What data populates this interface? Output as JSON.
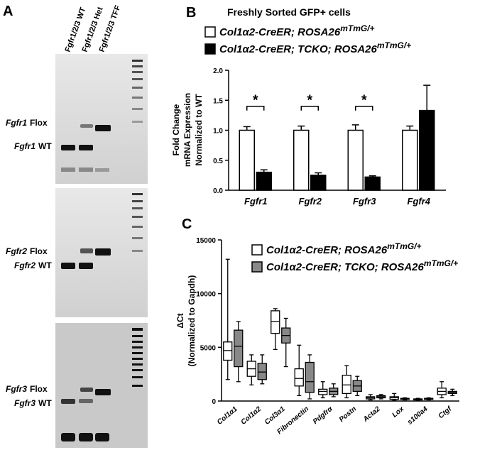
{
  "gel": {
    "panel_label": "A",
    "lanes": [
      "Fgfr1/2/3 WT",
      "Fgfr1/2/3 Het",
      "Fgfr1/2/3 TFF"
    ],
    "blots": [
      {
        "gene": "Fgfr1",
        "bands": [
          "Flox",
          "WT"
        ]
      },
      {
        "gene": "Fgfr2",
        "bands": [
          "Flox",
          "WT"
        ]
      },
      {
        "gene": "Fgfr3",
        "bands": [
          "Flox",
          "WT"
        ]
      }
    ]
  },
  "chart_data": [
    {
      "type": "bar",
      "panel_label": "B",
      "title": "Freshly Sorted GFP+ cells",
      "ylabel": [
        "Fold Change",
        "mRNA Expression",
        "Normalized to WT"
      ],
      "categories": [
        "Fgfr1",
        "Fgfr2",
        "Fgfr3",
        "Fgfr4"
      ],
      "series": [
        {
          "name": "Col1α2-CreER; ROSA26",
          "name_superscript": "mTmG/+",
          "color": "#ffffff",
          "values": [
            1.0,
            1.0,
            1.0,
            1.0
          ],
          "errors": [
            0.06,
            0.07,
            0.09,
            0.07
          ]
        },
        {
          "name": "Col1α2-CreER; TCKO; ROSA26",
          "name_superscript": "mTmG/+",
          "color": "#000000",
          "values": [
            0.3,
            0.25,
            0.22,
            1.33
          ],
          "errors": [
            0.04,
            0.04,
            0.02,
            0.42
          ]
        }
      ],
      "significance": [
        "*",
        "*",
        "*",
        null
      ],
      "ylim": [
        0,
        2
      ],
      "yticks": [
        {
          "value": 0,
          "label": "0.0"
        },
        {
          "value": 0.5,
          "label": "0.5"
        },
        {
          "value": 1,
          "label": "1.0"
        },
        {
          "value": 1.5,
          "label": "1.5"
        },
        {
          "value": 2,
          "label": "2.0"
        }
      ]
    },
    {
      "type": "box",
      "panel_label": "C",
      "ylabel": [
        "ΔCt",
        "(Normalized to Gapdh)"
      ],
      "categories": [
        "Col1α1",
        "Col1α2",
        "Col3α1",
        "Fibronectin",
        "Pdgfrα",
        "Postn",
        "Acta2",
        "Lox",
        "s100a4",
        "Ctgf"
      ],
      "series": [
        {
          "name": "Col1α2-CreER; ROSA26",
          "name_superscript": "mTmG/+",
          "color": "#ffffff",
          "values": [
            [
              2000,
              3800,
              4700,
              5500,
              13200
            ],
            [
              1500,
              2300,
              3000,
              3700,
              4300
            ],
            [
              4800,
              6300,
              7400,
              8400,
              8600
            ],
            [
              500,
              1400,
              2100,
              3000,
              5200
            ],
            [
              300,
              600,
              900,
              1100,
              1800
            ],
            [
              300,
              700,
              1500,
              2400,
              3300
            ],
            [
              100,
              200,
              300,
              400,
              600
            ],
            [
              50,
              150,
              300,
              400,
              700
            ],
            [
              50,
              100,
              150,
              200,
              250
            ],
            [
              300,
              600,
              900,
              1200,
              1800
            ]
          ]
        },
        {
          "name": "Col1α2-CreER; TCKO; ROSA26",
          "name_superscript": "mTmG/+",
          "color": "#888888",
          "values": [
            [
              1800,
              3200,
              5100,
              6600,
              7400
            ],
            [
              1600,
              2000,
              2700,
              3500,
              4300
            ],
            [
              3200,
              5400,
              6100,
              6800,
              7700
            ],
            [
              200,
              800,
              1800,
              3600,
              4300
            ],
            [
              400,
              600,
              900,
              1200,
              1600
            ],
            [
              500,
              900,
              1400,
              1900,
              2300
            ],
            [
              200,
              300,
              400,
              500,
              600
            ],
            [
              100,
              150,
              200,
              250,
              300
            ],
            [
              100,
              150,
              200,
              250,
              300
            ],
            [
              500,
              700,
              800,
              900,
              1100
            ]
          ]
        }
      ],
      "ylim": [
        0,
        15000
      ],
      "yticks": [
        0,
        5000,
        10000,
        15000
      ]
    }
  ]
}
